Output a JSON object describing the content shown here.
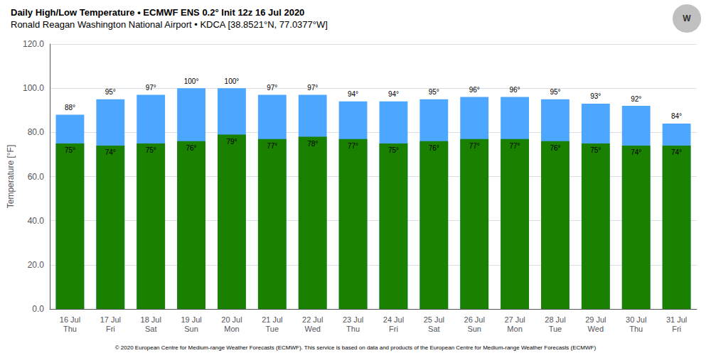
{
  "chart_data": {
    "type": "bar",
    "title": "Daily High/Low Temperature • ECMWF ENS 0.2° Init 12z 16 Jul 2020",
    "subtitle": "Ronald Reagan Washington National Airport • KDCA [38.8521°N, 77.0377°W]",
    "annotations": [
      "© 2020 European Centre for Medium-range Weather Forecasts (ECMWF). This service is based on data and products of the European Centre for Medium-range Weather Forecasts (ECMWF)",
      "W"
    ],
    "categories": [
      "16 Jul\nThu",
      "17 Jul\nFri",
      "18 Jul\nSat",
      "19 Jul\nSun",
      "20 Jul\nMon",
      "21 Jul\nTue",
      "22 Jul\nWed",
      "23 Jul\nThu",
      "24 Jul\nFri",
      "25 Jul\nSat",
      "26 Jul\nSun",
      "27 Jul\nMon",
      "28 Jul\nTue",
      "29 Jul\nWed",
      "30 Jul\nThu",
      "31 Jul\nFri"
    ],
    "series": [
      {
        "color": "#1A8000",
        "values": [
          75,
          74,
          75,
          76,
          79,
          77,
          78,
          77,
          75,
          76,
          77,
          77,
          76,
          75,
          74,
          74
        ],
        "value_labels": [
          "75°",
          "74°",
          "75°",
          "76°",
          "79°",
          "77°",
          "78°",
          "77°",
          "75°",
          "76°",
          "77°",
          "77°",
          "76°",
          "75°",
          "74°",
          "74°"
        ]
      },
      {
        "color": "#4DA6FF",
        "values": [
          88,
          95,
          97,
          100,
          100,
          97,
          97,
          94,
          94,
          95,
          96,
          96,
          95,
          93,
          92,
          84
        ],
        "value_labels": [
          "88°",
          "95°",
          "97°",
          "100°",
          "100°",
          "97°",
          "97°",
          "94°",
          "94°",
          "95°",
          "96°",
          "96°",
          "95°",
          "93°",
          "92°",
          "84°"
        ]
      }
    ],
    "ylabel": "Temperature [°F]",
    "ylim": [
      0,
      120
    ],
    "yticks": [
      {
        "value": 0,
        "label": "0.0"
      },
      {
        "value": 20,
        "label": "20.0"
      },
      {
        "value": 40,
        "label": "40.0"
      },
      {
        "value": 60,
        "label": "60.0"
      },
      {
        "value": 80,
        "label": "80.0"
      },
      {
        "value": 100,
        "label": "100.0"
      },
      {
        "value": 120,
        "label": "120.0"
      }
    ],
    "grid": true,
    "stacked": false,
    "data_labels": true
  }
}
